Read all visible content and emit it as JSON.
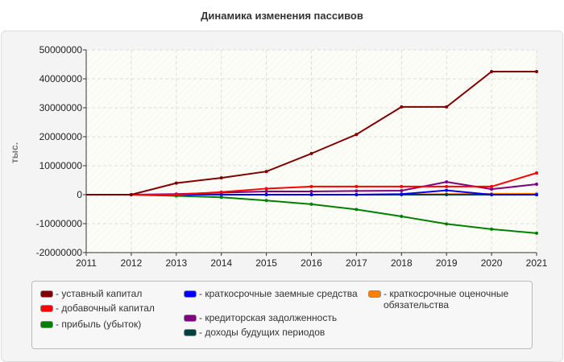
{
  "chart_data": {
    "type": "line",
    "title": "Динамика изменения пассивов",
    "ylabel": "тыс.",
    "xlabel": "",
    "x": [
      2011,
      2012,
      2013,
      2014,
      2015,
      2016,
      2017,
      2018,
      2019,
      2020,
      2021
    ],
    "xlim": [
      2011,
      2021
    ],
    "ylim": [
      -20000000,
      50000000
    ],
    "yticks": [
      "50000000",
      "40000000",
      "30000000",
      "20000000",
      "10000000",
      "0",
      "-10000000",
      "-20000000"
    ],
    "xticks": [
      "2011",
      "2012",
      "2013",
      "2014",
      "2015",
      "2016",
      "2017",
      "2018",
      "2019",
      "2020",
      "2021"
    ],
    "grid": true,
    "legend": "bottom",
    "series": [
      {
        "name": "уставный капитал",
        "color": "#800000",
        "values": [
          0,
          0,
          4000000,
          5800000,
          8000000,
          14200000,
          20800000,
          30300000,
          30300000,
          42500000,
          42500000
        ]
      },
      {
        "name": "добавочный капитал",
        "color": "#ff0000",
        "values": [
          0,
          0,
          0,
          900000,
          2100000,
          2800000,
          2800000,
          2800000,
          2800000,
          2800000,
          7500000
        ]
      },
      {
        "name": "прибыль (убыток)",
        "color": "#008000",
        "values": [
          0,
          0,
          -400000,
          -900000,
          -2000000,
          -3300000,
          -5100000,
          -7500000,
          -10100000,
          -11900000,
          -13300000
        ]
      },
      {
        "name": "краткосрочные заемные средства",
        "color": "#0000ff",
        "values": [
          0,
          0,
          0,
          0,
          0,
          0,
          0,
          200000,
          1500000,
          0,
          0
        ]
      },
      {
        "name": "кредиторская задолженность",
        "color": "#800080",
        "values": [
          0,
          0,
          200000,
          700000,
          1100000,
          1100000,
          1300000,
          1400000,
          4400000,
          1900000,
          3600000
        ]
      },
      {
        "name": "доходы будущих периодов",
        "color": "#004040",
        "values": [
          0,
          0,
          0,
          0,
          0,
          0,
          0,
          0,
          0,
          0,
          0
        ]
      },
      {
        "name": "краткосрочные оценочные обязательства",
        "color": "#ff8000",
        "values": [
          0,
          0,
          0,
          0,
          0,
          0,
          0,
          100000,
          200000,
          300000,
          300000
        ]
      }
    ]
  },
  "legend_items": [
    {
      "label": "- уставный капитал"
    },
    {
      "label": "- добавочный капитал"
    },
    {
      "label": "- прибыль (убыток)"
    },
    {
      "label": "- краткосрочные заемные средства"
    },
    {
      "label": "- кредиторская задолженность"
    },
    {
      "label": "- доходы будущих периодов"
    },
    {
      "label": "- краткосрочные оценочные обязательства"
    }
  ]
}
